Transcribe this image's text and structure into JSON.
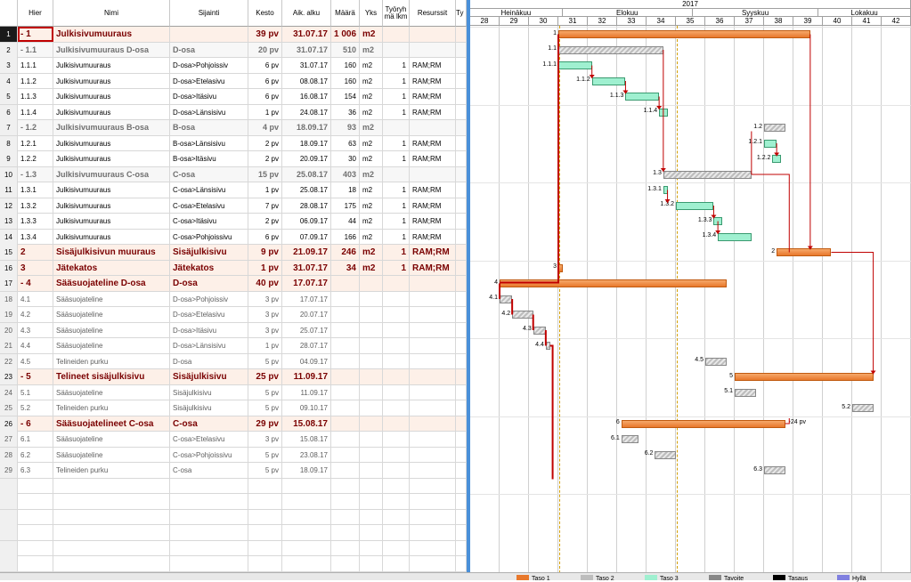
{
  "columns": {
    "hier": "Hier",
    "name": "Nimi",
    "location": "Sijainti",
    "duration": "Kesto",
    "start": "Aik. alku",
    "amount": "Määrä",
    "unit": "Yks",
    "team": "Työryh mä lkm",
    "resources": "Resurssit",
    "type": "Ty"
  },
  "rows": [
    {
      "n": "1",
      "hier": "- 1",
      "name": "Julkisivumuuraus",
      "loc": "",
      "dur": "39 pv",
      "start": "31.07.17",
      "amt": "1 006",
      "unit": "m2",
      "team": "",
      "res": "",
      "lvl": "l1"
    },
    {
      "n": "2",
      "hier": "- 1.1",
      "name": "Julkisivumuuraus D-osa",
      "loc": "D-osa",
      "dur": "20 pv",
      "start": "31.07.17",
      "amt": "510",
      "unit": "m2",
      "team": "",
      "res": "",
      "lvl": "l2"
    },
    {
      "n": "3",
      "hier": "1.1.1",
      "name": "Julkisivumuuraus",
      "loc": "D-osa>Pohjoissiv",
      "dur": "6 pv",
      "start": "31.07.17",
      "amt": "160",
      "unit": "m2",
      "team": "1",
      "res": "RAM;RM",
      "lvl": "l3"
    },
    {
      "n": "4",
      "hier": "1.1.2",
      "name": "Julkisivumuuraus",
      "loc": "D-osa>Etelasivu",
      "dur": "6 pv",
      "start": "08.08.17",
      "amt": "160",
      "unit": "m2",
      "team": "1",
      "res": "RAM;RM",
      "lvl": "l3"
    },
    {
      "n": "5",
      "hier": "1.1.3",
      "name": "Julkisivumuuraus",
      "loc": "D-osa>Itäsivu",
      "dur": "6 pv",
      "start": "16.08.17",
      "amt": "154",
      "unit": "m2",
      "team": "1",
      "res": "RAM;RM",
      "lvl": "l3"
    },
    {
      "n": "6",
      "hier": "1.1.4",
      "name": "Julkisivumuuraus",
      "loc": "D-osa>Länsisivu",
      "dur": "1 pv",
      "start": "24.08.17",
      "amt": "36",
      "unit": "m2",
      "team": "1",
      "res": "RAM;RM",
      "lvl": "l3"
    },
    {
      "n": "7",
      "hier": "- 1.2",
      "name": "Julkisivumuuraus B-osa",
      "loc": "B-osa",
      "dur": "4 pv",
      "start": "18.09.17",
      "amt": "93",
      "unit": "m2",
      "team": "",
      "res": "",
      "lvl": "l2"
    },
    {
      "n": "8",
      "hier": "1.2.1",
      "name": "Julkisivumuuraus",
      "loc": "B-osa>Länsisivu",
      "dur": "2 pv",
      "start": "18.09.17",
      "amt": "63",
      "unit": "m2",
      "team": "1",
      "res": "RAM;RM",
      "lvl": "l3"
    },
    {
      "n": "9",
      "hier": "1.2.2",
      "name": "Julkisivumuuraus",
      "loc": "B-osa>Itäsivu",
      "dur": "2 pv",
      "start": "20.09.17",
      "amt": "30",
      "unit": "m2",
      "team": "1",
      "res": "RAM;RM",
      "lvl": "l3"
    },
    {
      "n": "10",
      "hier": "- 1.3",
      "name": "Julkisivumuuraus C-osa",
      "loc": "C-osa",
      "dur": "15 pv",
      "start": "25.08.17",
      "amt": "403",
      "unit": "m2",
      "team": "",
      "res": "",
      "lvl": "l2"
    },
    {
      "n": "11",
      "hier": "1.3.1",
      "name": "Julkisivumuuraus",
      "loc": "C-osa>Länsisivu",
      "dur": "1 pv",
      "start": "25.08.17",
      "amt": "18",
      "unit": "m2",
      "team": "1",
      "res": "RAM;RM",
      "lvl": "l3"
    },
    {
      "n": "12",
      "hier": "1.3.2",
      "name": "Julkisivumuuraus",
      "loc": "C-osa>Etelasivu",
      "dur": "7 pv",
      "start": "28.08.17",
      "amt": "175",
      "unit": "m2",
      "team": "1",
      "res": "RAM;RM",
      "lvl": "l3"
    },
    {
      "n": "13",
      "hier": "1.3.3",
      "name": "Julkisivumuuraus",
      "loc": "C-osa>Itäsivu",
      "dur": "2 pv",
      "start": "06.09.17",
      "amt": "44",
      "unit": "m2",
      "team": "1",
      "res": "RAM;RM",
      "lvl": "l3"
    },
    {
      "n": "14",
      "hier": "1.3.4",
      "name": "Julkisivumuuraus",
      "loc": "C-osa>Pohjoissivu",
      "dur": "6 pv",
      "start": "07.09.17",
      "amt": "166",
      "unit": "m2",
      "team": "1",
      "res": "RAM;RM",
      "lvl": "l3"
    },
    {
      "n": "15",
      "hier": "2",
      "name": "Sisäjulkisivun muuraus",
      "loc": "Sisäjulkisivu",
      "dur": "9 pv",
      "start": "21.09.17",
      "amt": "246",
      "unit": "m2",
      "team": "1",
      "res": "RAM;RM",
      "lvl": "l1"
    },
    {
      "n": "16",
      "hier": "3",
      "name": "Jätekatos",
      "loc": "Jätekatos",
      "dur": "1 pv",
      "start": "31.07.17",
      "amt": "34",
      "unit": "m2",
      "team": "1",
      "res": "RAM;RM",
      "lvl": "l1"
    },
    {
      "n": "17",
      "hier": "- 4",
      "name": "Sääsuojateline D-osa",
      "loc": "D-osa",
      "dur": "40 pv",
      "start": "17.07.17",
      "amt": "",
      "unit": "",
      "team": "",
      "res": "",
      "lvl": "l1"
    },
    {
      "n": "18",
      "hier": "4.1",
      "name": "Sääsuojateline",
      "loc": "D-osa>Pohjoissiv",
      "dur": "3 pv",
      "start": "17.07.17",
      "amt": "",
      "unit": "",
      "team": "",
      "res": "",
      "lvl": "l3w"
    },
    {
      "n": "19",
      "hier": "4.2",
      "name": "Sääsuojateline",
      "loc": "D-osa>Etelasivu",
      "dur": "3 pv",
      "start": "20.07.17",
      "amt": "",
      "unit": "",
      "team": "",
      "res": "",
      "lvl": "l3w"
    },
    {
      "n": "20",
      "hier": "4.3",
      "name": "Sääsuojateline",
      "loc": "D-osa>Itäsivu",
      "dur": "3 pv",
      "start": "25.07.17",
      "amt": "",
      "unit": "",
      "team": "",
      "res": "",
      "lvl": "l3w"
    },
    {
      "n": "21",
      "hier": "4.4",
      "name": "Sääsuojateline",
      "loc": "D-osa>Länsisivu",
      "dur": "1 pv",
      "start": "28.07.17",
      "amt": "",
      "unit": "",
      "team": "",
      "res": "",
      "lvl": "l3w"
    },
    {
      "n": "22",
      "hier": "4.5",
      "name": "Telineiden purku",
      "loc": "D-osa",
      "dur": "5 pv",
      "start": "04.09.17",
      "amt": "",
      "unit": "",
      "team": "",
      "res": "",
      "lvl": "l3w"
    },
    {
      "n": "23",
      "hier": "- 5",
      "name": "Telineet sisäjulkisivu",
      "loc": "Sisäjulkisivu",
      "dur": "25 pv",
      "start": "11.09.17",
      "amt": "",
      "unit": "",
      "team": "",
      "res": "",
      "lvl": "l1"
    },
    {
      "n": "24",
      "hier": "5.1",
      "name": "Sääsuojateline",
      "loc": "Sisäjulkisivu",
      "dur": "5 pv",
      "start": "11.09.17",
      "amt": "",
      "unit": "",
      "team": "",
      "res": "",
      "lvl": "l3w"
    },
    {
      "n": "25",
      "hier": "5.2",
      "name": "Telineiden purku",
      "loc": "Sisäjulkisivu",
      "dur": "5 pv",
      "start": "09.10.17",
      "amt": "",
      "unit": "",
      "team": "",
      "res": "",
      "lvl": "l3w"
    },
    {
      "n": "26",
      "hier": "- 6",
      "name": "Sääsuojatelineet C-osa",
      "loc": "C-osa",
      "dur": "29 pv",
      "start": "15.08.17",
      "amt": "",
      "unit": "",
      "team": "",
      "res": "",
      "lvl": "l1"
    },
    {
      "n": "27",
      "hier": "6.1",
      "name": "Sääsuojateline",
      "loc": "C-osa>Etelasivu",
      "dur": "3 pv",
      "start": "15.08.17",
      "amt": "",
      "unit": "",
      "team": "",
      "res": "",
      "lvl": "l3w"
    },
    {
      "n": "28",
      "hier": "6.2",
      "name": "Sääsuojateline",
      "loc": "C-osa>Pohjoissivu",
      "dur": "5 pv",
      "start": "23.08.17",
      "amt": "",
      "unit": "",
      "team": "",
      "res": "",
      "lvl": "l3w"
    },
    {
      "n": "29",
      "hier": "6.3",
      "name": "Telineiden purku",
      "loc": "C-osa",
      "dur": "5 pv",
      "start": "18.09.17",
      "amt": "",
      "unit": "",
      "team": "",
      "res": "",
      "lvl": "l3w"
    }
  ],
  "gantt": {
    "year": "2017",
    "months": [
      "Heinäkuu",
      "Elokuu",
      "Syyskuu",
      "Lokakuu"
    ],
    "weeks": [
      "28",
      "29",
      "30",
      "31",
      "32",
      "33",
      "34",
      "35",
      "36",
      "37",
      "38",
      "39",
      "40",
      "41",
      "42"
    ],
    "float_label": "-24 pv",
    "bars": [
      {
        "row": 0,
        "start": "31.07.17",
        "end": "29.09.17",
        "style": "orange",
        "label": "1"
      },
      {
        "row": 1,
        "start": "31.07.17",
        "end": "25.08.17",
        "style": "grey",
        "label": "1.1"
      },
      {
        "row": 2,
        "start": "31.07.17",
        "end": "08.08.17",
        "style": "green",
        "label": "1.1.1"
      },
      {
        "row": 3,
        "start": "08.08.17",
        "end": "16.08.17",
        "style": "green",
        "label": "1.1.2"
      },
      {
        "row": 4,
        "start": "16.08.17",
        "end": "24.08.17",
        "style": "green",
        "label": "1.1.3"
      },
      {
        "row": 5,
        "start": "24.08.17",
        "end": "26.08.17",
        "style": "green",
        "label": "1.1.4"
      },
      {
        "row": 6,
        "start": "18.09.17",
        "end": "23.09.17",
        "style": "grey",
        "label": "1.2"
      },
      {
        "row": 7,
        "start": "18.09.17",
        "end": "21.09.17",
        "style": "green",
        "label": "1.2.1"
      },
      {
        "row": 8,
        "start": "20.09.17",
        "end": "22.09.17",
        "style": "green",
        "label": "1.2.2"
      },
      {
        "row": 9,
        "start": "25.08.17",
        "end": "15.09.17",
        "style": "grey",
        "label": "1.3"
      },
      {
        "row": 10,
        "start": "25.08.17",
        "end": "26.08.17",
        "style": "green",
        "label": "1.3.1"
      },
      {
        "row": 11,
        "start": "28.08.17",
        "end": "06.09.17",
        "style": "green",
        "label": "1.3.2"
      },
      {
        "row": 12,
        "start": "06.09.17",
        "end": "08.09.17",
        "style": "green",
        "label": "1.3.3"
      },
      {
        "row": 13,
        "start": "07.09.17",
        "end": "15.09.17",
        "style": "green",
        "label": "1.3.4"
      },
      {
        "row": 14,
        "start": "21.09.17",
        "end": "04.10.17",
        "style": "orange",
        "label": "2"
      },
      {
        "row": 15,
        "start": "31.07.17",
        "end": "01.08.17",
        "style": "orange",
        "label": "3"
      },
      {
        "row": 16,
        "start": "17.07.17",
        "end": "09.09.17",
        "style": "orange",
        "label": "4"
      },
      {
        "row": 17,
        "start": "17.07.17",
        "end": "20.07.17",
        "style": "grey",
        "label": "4.1"
      },
      {
        "row": 18,
        "start": "20.07.17",
        "end": "25.07.17",
        "style": "grey",
        "label": "4.2"
      },
      {
        "row": 19,
        "start": "25.07.17",
        "end": "28.07.17",
        "style": "grey",
        "label": "4.3"
      },
      {
        "row": 20,
        "start": "28.07.17",
        "end": "29.07.17",
        "style": "grey",
        "label": "4.4"
      },
      {
        "row": 21,
        "start": "04.09.17",
        "end": "09.09.17",
        "style": "grey",
        "label": "4.5"
      },
      {
        "row": 22,
        "start": "11.09.17",
        "end": "14.10.17",
        "style": "orange",
        "label": "5"
      },
      {
        "row": 23,
        "start": "11.09.17",
        "end": "16.09.17",
        "style": "grey",
        "label": "5.1"
      },
      {
        "row": 24,
        "start": "09.10.17",
        "end": "14.10.17",
        "style": "grey",
        "label": "5.2"
      },
      {
        "row": 25,
        "start": "15.08.17",
        "end": "23.09.17",
        "style": "orange",
        "label": "6"
      },
      {
        "row": 26,
        "start": "15.08.17",
        "end": "19.08.17",
        "style": "grey",
        "label": "6.1"
      },
      {
        "row": 27,
        "start": "23.08.17",
        "end": "28.08.17",
        "style": "grey",
        "label": "6.2"
      },
      {
        "row": 28,
        "start": "18.09.17",
        "end": "23.09.17",
        "style": "grey",
        "label": "6.3"
      }
    ]
  },
  "legend": [
    "Taso 1",
    "Taso 2",
    "Taso 3",
    "Tavoite",
    "Tasaus",
    "Hyllä"
  ],
  "colors": {
    "orange": "#e8782c",
    "green": "#9ff0d0",
    "grey": "#bdbdbd",
    "critical": "#c00000",
    "splitter": "#4a90d9"
  }
}
